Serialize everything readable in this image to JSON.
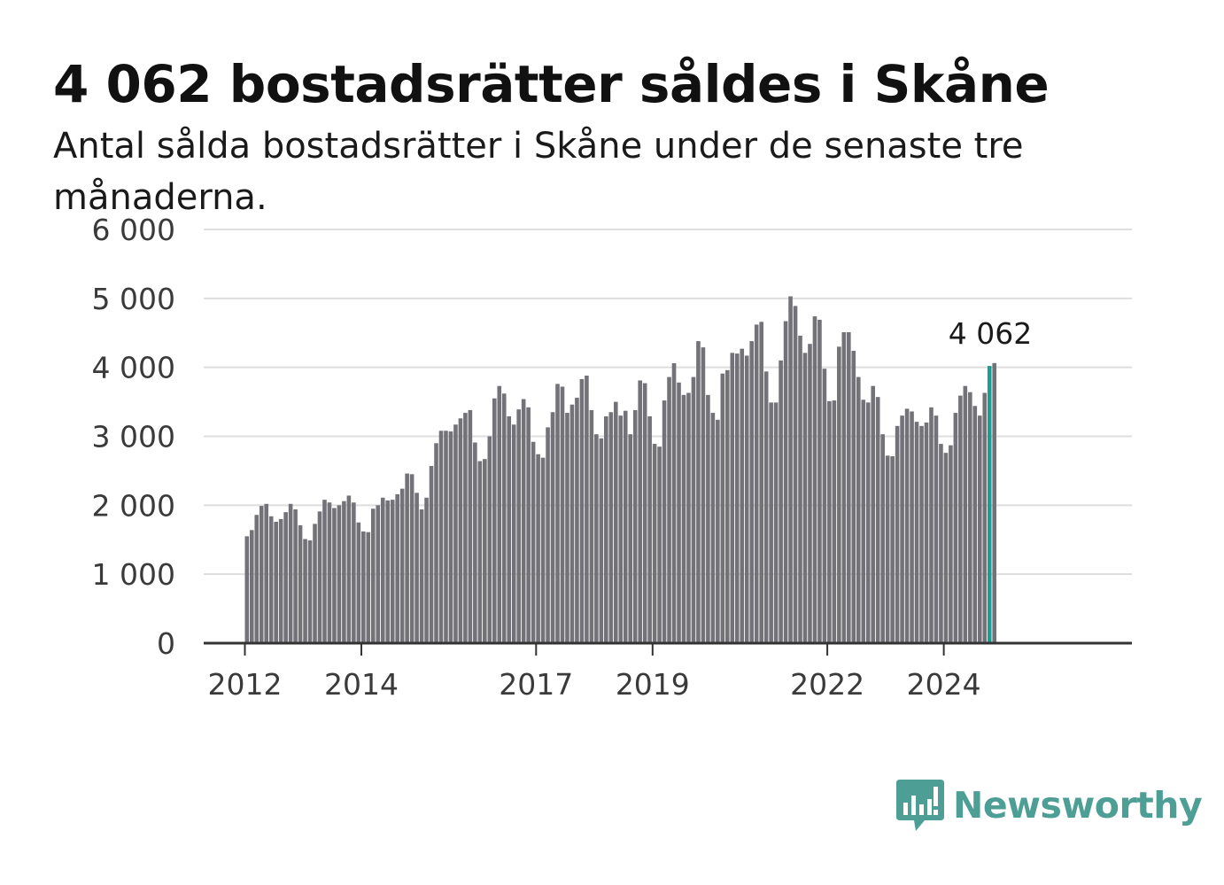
{
  "header": {
    "title": "4 062 bostadsrätter såldes i Skåne",
    "subtitle": "Antal sålda bostadsrätter i Skåne under de senaste tre månaderna."
  },
  "brand": {
    "name": "Newsworthy",
    "color": "#4d9e94"
  },
  "colors": {
    "bar": "#737278",
    "highlight": "#1a9e94",
    "grid": "#dedede",
    "axis": "#333333"
  },
  "chart_data": {
    "type": "bar",
    "title": "4 062 bostadsrätter såldes i Skåne",
    "subtitle": "Antal sålda bostadsrätter i Skåne under de senaste tre månaderna.",
    "x_start": "2012-01",
    "x_end": "2024-10",
    "x_ticks": [
      "2012",
      "2014",
      "2017",
      "2019",
      "2022",
      "2024"
    ],
    "y_ticks": [
      0,
      1000,
      2000,
      3000,
      4000,
      5000,
      6000
    ],
    "y_tick_labels": [
      "0",
      "1 000",
      "2 000",
      "3 000",
      "4 000",
      "5 000",
      "6 000"
    ],
    "ylim": [
      0,
      6000
    ],
    "grid": true,
    "highlight": {
      "month": "2024-10",
      "value": 4062,
      "label": "4 062"
    },
    "values": [
      1550,
      1640,
      1860,
      1990,
      2020,
      1840,
      1760,
      1800,
      1900,
      2020,
      1940,
      1710,
      1510,
      1490,
      1730,
      1910,
      2080,
      2040,
      1960,
      2000,
      2060,
      2140,
      2040,
      1750,
      1620,
      1610,
      1950,
      2000,
      2110,
      2070,
      2080,
      2160,
      2240,
      2460,
      2450,
      2180,
      1940,
      2110,
      2570,
      2900,
      3080,
      3080,
      3070,
      3170,
      3260,
      3340,
      3380,
      2910,
      2640,
      2670,
      3000,
      3550,
      3730,
      3620,
      3290,
      3170,
      3390,
      3540,
      3420,
      2920,
      2740,
      2690,
      3130,
      3350,
      3760,
      3720,
      3340,
      3460,
      3560,
      3830,
      3880,
      3380,
      3030,
      2970,
      3290,
      3350,
      3500,
      3300,
      3370,
      3030,
      3380,
      3810,
      3770,
      3290,
      2890,
      2850,
      3520,
      3860,
      4060,
      3780,
      3600,
      3630,
      3860,
      4380,
      4290,
      3600,
      3340,
      3240,
      3910,
      3960,
      4210,
      4200,
      4270,
      4170,
      4380,
      4620,
      4660,
      3940,
      3490,
      3490,
      4100,
      4670,
      5030,
      4890,
      4460,
      4210,
      4340,
      4740,
      4690,
      3980,
      3510,
      3520,
      4300,
      4510,
      4510,
      4240,
      3860,
      3530,
      3490,
      3730,
      3570,
      3030,
      2720,
      2710,
      3150,
      3300,
      3400,
      3360,
      3210,
      3150,
      3200,
      3420,
      3300,
      2890,
      2760,
      2870,
      3340,
      3590,
      3730,
      3640,
      3440,
      3300,
      3630,
      4020,
      4062
    ]
  }
}
